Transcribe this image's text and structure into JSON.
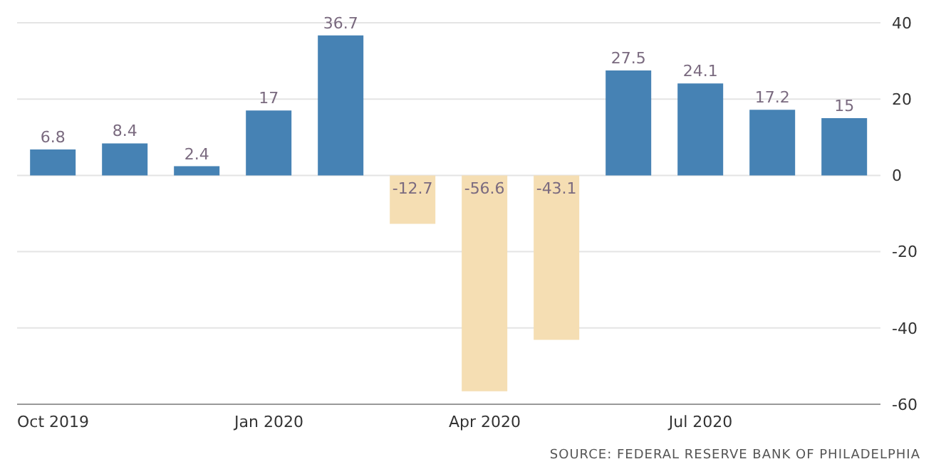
{
  "chart_data": {
    "type": "bar",
    "categories": [
      "Oct 2019",
      null,
      null,
      "Jan 2020",
      null,
      null,
      "Apr 2020",
      null,
      null,
      "Jul 2020",
      null,
      null
    ],
    "values": [
      6.8,
      8.4,
      2.4,
      17,
      36.7,
      -12.7,
      -56.6,
      -43.1,
      27.5,
      24.1,
      17.2,
      15
    ],
    "colors": [
      "#4682b4",
      "#4682b4",
      "#4682b4",
      "#4682b4",
      "#4682b4",
      "#f5deb3",
      "#f5deb3",
      "#f5deb3",
      "#4682b4",
      "#4682b4",
      "#4682b4",
      "#4682b4"
    ],
    "ylim": [
      -60,
      40
    ],
    "yticks": [
      -60,
      -40,
      -20,
      0,
      20,
      40
    ],
    "grid": "y",
    "data_labels": true,
    "annotations": [
      "SOURCE: FEDERAL RESERVE BANK OF PHILADELPHIA"
    ]
  }
}
